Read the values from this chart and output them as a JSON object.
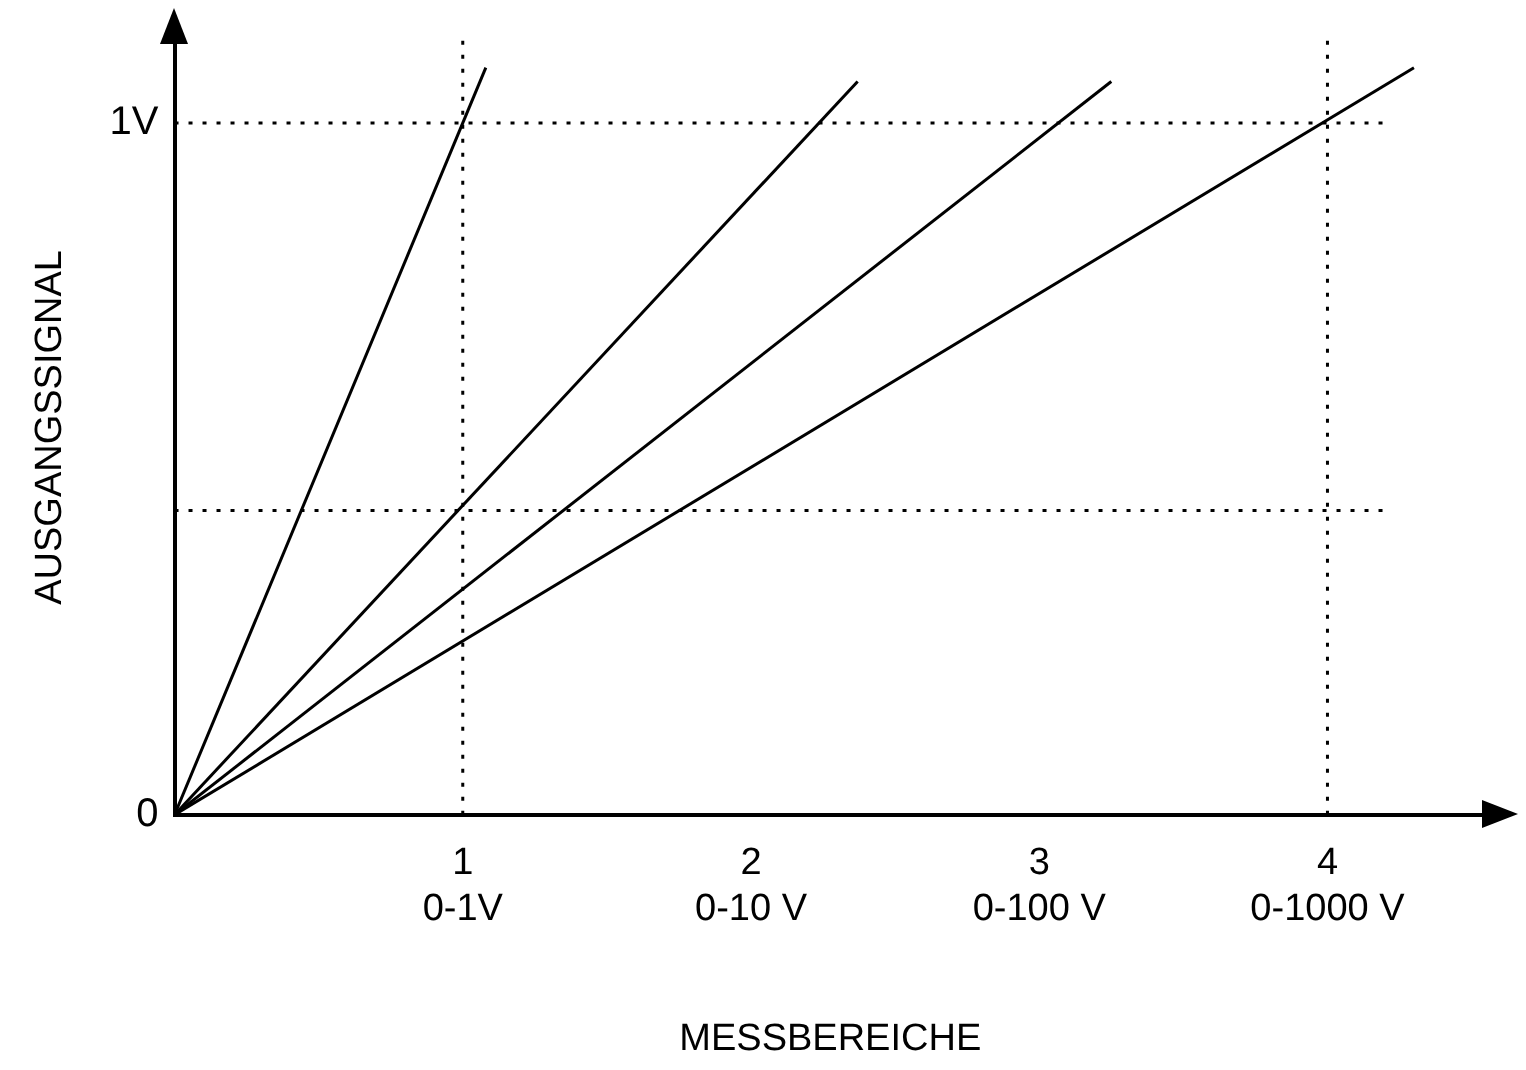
{
  "chart_data": {
    "type": "line",
    "xlabel": "MESSBEREICHE",
    "ylabel": "AUSGANGSSIGNAL",
    "series": [
      {
        "color": "#000000",
        "x": [
          0,
          1.08
        ],
        "values": [
          0,
          1.08
        ]
      },
      {
        "color": "#000000",
        "x": [
          0,
          2.37
        ],
        "values": [
          0,
          1.06
        ]
      },
      {
        "color": "#000000",
        "x": [
          0,
          3.25
        ],
        "values": [
          0,
          1.06
        ]
      },
      {
        "color": "#000000",
        "x": [
          0,
          4.3
        ],
        "values": [
          0,
          1.08
        ]
      }
    ],
    "xlim": [
      0,
      4.55
    ],
    "ylim": [
      0,
      1.12
    ],
    "xticks": [
      1,
      2,
      3,
      4
    ],
    "annotations": [
      "0-1V",
      "0-10 V",
      "0-100 V",
      "0-1000 V"
    ],
    "yticks": [
      {
        "value": 0,
        "label": "0"
      },
      {
        "value": 1,
        "label": "1V"
      }
    ],
    "ref_lines": [
      {
        "axis": "x",
        "value": 1,
        "line_style": "dotted",
        "color": "#000000"
      },
      {
        "axis": "x",
        "value": 4,
        "line_style": "dotted",
        "color": "#000000"
      },
      {
        "axis": "y",
        "value": 1,
        "line_style": "dotted",
        "color": "#000000"
      },
      {
        "axis": "y",
        "value": 0.44,
        "line_style": "dotted",
        "color": "#000000"
      }
    ],
    "grid": false,
    "legend": false,
    "marker": "none",
    "line_style": "solid"
  }
}
